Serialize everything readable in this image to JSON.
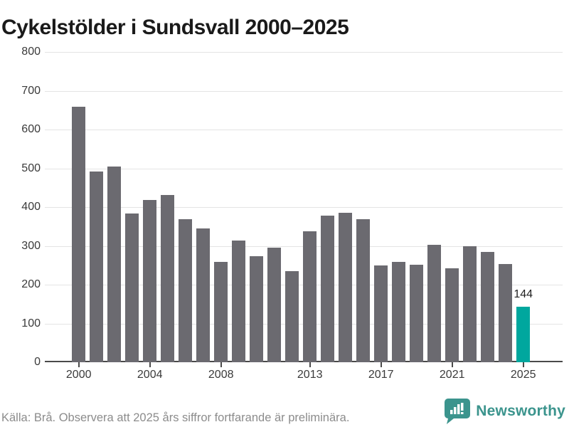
{
  "title": "Cykelstölder i Sundsvall 2000–2025",
  "chart_data": {
    "type": "bar",
    "title": "Cykelstölder i Sundsvall 2000–2025",
    "x": [
      2000,
      2001,
      2002,
      2003,
      2004,
      2005,
      2006,
      2007,
      2008,
      2009,
      2010,
      2011,
      2012,
      2013,
      2014,
      2015,
      2016,
      2017,
      2018,
      2019,
      2020,
      2021,
      2022,
      2023,
      2024,
      2025
    ],
    "values": [
      659,
      491,
      504,
      383,
      418,
      432,
      368,
      345,
      258,
      313,
      273,
      295,
      235,
      338,
      378,
      386,
      369,
      250,
      258,
      251,
      303,
      242,
      300,
      284,
      254,
      144
    ],
    "highlight_year": 2025,
    "highlight_value_label": "144",
    "y_ticks": [
      0,
      100,
      200,
      300,
      400,
      500,
      600,
      700,
      800
    ],
    "x_tick_labels": [
      "2000",
      "2004",
      "2008",
      "2013",
      "2017",
      "2021",
      "2025"
    ],
    "ylim": [
      0,
      800
    ],
    "grid": true,
    "legend_position": "none",
    "bar_color": "#6b6a70",
    "highlight_color": "#00a79e",
    "gridline_color": "#e4e4e4",
    "axis_color": "#4a4a4a"
  },
  "footer": {
    "source": "Källa: Brå. Observera att 2025 års siffror fortfarande är preliminära.",
    "brand": "Newsworthy",
    "brand_color": "#3b948d"
  }
}
